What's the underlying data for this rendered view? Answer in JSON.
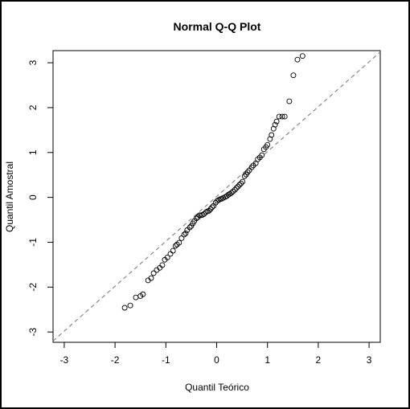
{
  "chart_data": {
    "type": "scatter",
    "title": "Normal Q-Q Plot",
    "x_label": "Quantil Teórico",
    "y_label": "Quantil Amostral",
    "x": [
      -1.81,
      -1.7,
      -1.59,
      -1.5,
      -1.45,
      -1.35,
      -1.29,
      -1.24,
      -1.18,
      -1.12,
      -1.07,
      -1.02,
      -0.97,
      -0.91,
      -0.86,
      -0.81,
      -0.78,
      -0.74,
      -0.69,
      -0.64,
      -0.61,
      -0.58,
      -0.53,
      -0.5,
      -0.47,
      -0.44,
      -0.4,
      -0.37,
      -0.34,
      -0.31,
      -0.28,
      -0.25,
      -0.21,
      -0.18,
      -0.15,
      -0.12,
      -0.09,
      -0.06,
      -0.02,
      0.01,
      0.04,
      0.07,
      0.1,
      0.13,
      0.17,
      0.2,
      0.23,
      0.26,
      0.29,
      0.32,
      0.36,
      0.39,
      0.42,
      0.45,
      0.48,
      0.51,
      0.55,
      0.58,
      0.61,
      0.64,
      0.69,
      0.72,
      0.77,
      0.81,
      0.85,
      0.89,
      0.93,
      0.97,
      1.0,
      1.05,
      1.08,
      1.12,
      1.15,
      1.18,
      1.23,
      1.29,
      1.34,
      1.43,
      1.51,
      1.59,
      1.69
    ],
    "values": [
      -2.46,
      -2.41,
      -2.23,
      -2.2,
      -2.16,
      -1.85,
      -1.8,
      -1.69,
      -1.62,
      -1.57,
      -1.51,
      -1.39,
      -1.34,
      -1.26,
      -1.19,
      -1.08,
      -1.05,
      -1.01,
      -0.91,
      -0.83,
      -0.8,
      -0.73,
      -0.67,
      -0.64,
      -0.58,
      -0.53,
      -0.47,
      -0.44,
      -0.4,
      -0.4,
      -0.39,
      -0.37,
      -0.33,
      -0.31,
      -0.3,
      -0.26,
      -0.22,
      -0.19,
      -0.12,
      -0.08,
      -0.06,
      -0.04,
      -0.03,
      -0.01,
      0.01,
      0.03,
      0.06,
      0.08,
      0.1,
      0.13,
      0.17,
      0.21,
      0.24,
      0.28,
      0.31,
      0.35,
      0.47,
      0.51,
      0.56,
      0.6,
      0.67,
      0.71,
      0.76,
      0.85,
      0.89,
      0.94,
      1.07,
      1.12,
      1.17,
      1.3,
      1.39,
      1.53,
      1.62,
      1.69,
      1.8,
      1.8,
      1.8,
      2.14,
      2.72,
      3.07,
      3.15
    ],
    "color": "#000000",
    "reference_line": {
      "intercept": 0.02,
      "slope": 1.0,
      "color": "#888888"
    },
    "xlim": [
      -3.22,
      3.22
    ],
    "ylim": [
      -3.23,
      3.27
    ],
    "xticks": [
      -3,
      -2,
      -1,
      0,
      1,
      2,
      3
    ],
    "yticks": [
      -3,
      -2,
      -1,
      0,
      1,
      2,
      3
    ]
  }
}
